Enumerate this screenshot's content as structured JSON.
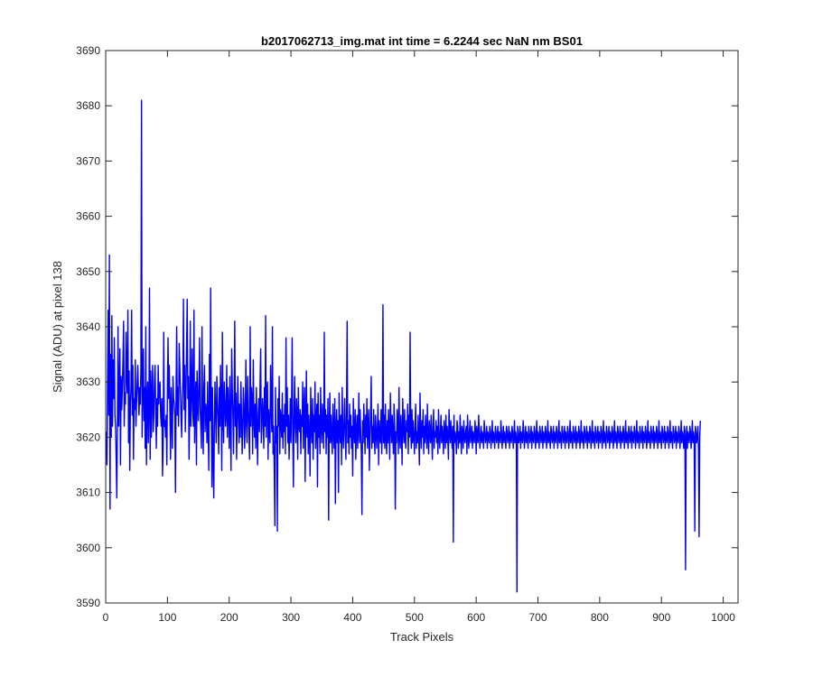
{
  "chart_data": {
    "type": "line",
    "title": "b2017062713_img.mat int time = 6.2244 sec  NaN nm BS01",
    "xlabel": "Track Pixels",
    "ylabel": "Signal (ADU) at pixel 138",
    "xlim": [
      0,
      1024
    ],
    "ylim": [
      3590,
      3690
    ],
    "xticks": [
      0,
      100,
      200,
      300,
      400,
      500,
      600,
      700,
      800,
      900,
      1000
    ],
    "yticks": [
      3590,
      3600,
      3610,
      3620,
      3630,
      3640,
      3650,
      3660,
      3670,
      3680,
      3690
    ],
    "grid": false,
    "series_color": "#0000ff",
    "series": [
      {
        "x_start": 1,
        "x_step": 1,
        "values": [
          3621,
          3615,
          3630,
          3643,
          3624,
          3653,
          3607,
          3635,
          3620,
          3642,
          3622,
          3634,
          3627,
          3638,
          3624,
          3622,
          3616,
          3609,
          3623,
          3640,
          3622,
          3629,
          3636,
          3615,
          3631,
          3625,
          3629,
          3634,
          3641,
          3622,
          3628,
          3626,
          3639,
          3631,
          3628,
          3643,
          3619,
          3632,
          3614,
          3626,
          3629,
          3643,
          3624,
          3633,
          3616,
          3627,
          3625,
          3634,
          3622,
          3626,
          3630,
          3633,
          3628,
          3624,
          3629,
          3626,
          3632,
          3681,
          3620,
          3629,
          3636,
          3623,
          3629,
          3618,
          3640,
          3615,
          3626,
          3630,
          3619,
          3625,
          3647,
          3616,
          3632,
          3620,
          3628,
          3633,
          3621,
          3624,
          3630,
          3633,
          3625,
          3618,
          3627,
          3622,
          3633,
          3626,
          3629,
          3630,
          3624,
          3622,
          3627,
          3613,
          3618,
          3639,
          3622,
          3623,
          3620,
          3624,
          3615,
          3629,
          3638,
          3627,
          3633,
          3625,
          3616,
          3629,
          3624,
          3618,
          3631,
          3627,
          3626,
          3624,
          3610,
          3628,
          3640,
          3624,
          3629,
          3622,
          3637,
          3633,
          3628,
          3624,
          3620,
          3627,
          3630,
          3645,
          3625,
          3633,
          3621,
          3628,
          3636,
          3645,
          3627,
          3631,
          3616,
          3624,
          3641,
          3622,
          3628,
          3636,
          3625,
          3622,
          3643,
          3619,
          3626,
          3630,
          3615,
          3632,
          3627,
          3623,
          3629,
          3638,
          3625,
          3622,
          3618,
          3640,
          3624,
          3617,
          3629,
          3633,
          3621,
          3626,
          3625,
          3619,
          3630,
          3621,
          3614,
          3635,
          3623,
          3647,
          3625,
          3611,
          3629,
          3616,
          3609,
          3622,
          3630,
          3624,
          3619,
          3631,
          3627,
          3623,
          3617,
          3629,
          3622,
          3633,
          3626,
          3614,
          3639,
          3624,
          3619,
          3630,
          3627,
          3622,
          3624,
          3633,
          3620,
          3629,
          3625,
          3618,
          3631,
          3623,
          3614,
          3636,
          3629,
          3624,
          3617,
          3627,
          3641,
          3622,
          3628,
          3616,
          3623,
          3631,
          3625,
          3619,
          3626,
          3620,
          3630,
          3624,
          3617,
          3621,
          3629,
          3626,
          3618,
          3623,
          3634,
          3622,
          3619,
          3631,
          3625,
          3621,
          3616,
          3640,
          3622,
          3629,
          3627,
          3617,
          3634,
          3624,
          3620,
          3626,
          3618,
          3629,
          3622,
          3615,
          3624,
          3627,
          3621,
          3630,
          3636,
          3619,
          3622,
          3627,
          3624,
          3618,
          3629,
          3622,
          3642,
          3620,
          3628,
          3630,
          3616,
          3625,
          3621,
          3619,
          3633,
          3626,
          3621,
          3640,
          3617,
          3622,
          3614,
          3604,
          3629,
          3619,
          3622,
          3603,
          3627,
          3622,
          3631,
          3617,
          3625,
          3623,
          3620,
          3628,
          3618,
          3624,
          3621,
          3626,
          3617,
          3638,
          3622,
          3629,
          3619,
          3624,
          3616,
          3621,
          3627,
          3619,
          3626,
          3638,
          3620,
          3611,
          3624,
          3631,
          3622,
          3619,
          3627,
          3624,
          3616,
          3629,
          3622,
          3621,
          3625,
          3617,
          3624,
          3622,
          3630,
          3618,
          3625,
          3629,
          3612,
          3623,
          3632,
          3620,
          3626,
          3617,
          3624,
          3621,
          3613,
          3629,
          3622,
          3619,
          3627,
          3616,
          3624,
          3621,
          3630,
          3618,
          3623,
          3626,
          3611,
          3628,
          3620,
          3624,
          3617,
          3629,
          3622,
          3619,
          3626,
          3622,
          3618,
          3639,
          3621,
          3625,
          3617,
          3624,
          3620,
          3627,
          3605,
          3622,
          3628,
          3619,
          3624,
          3620,
          3617,
          3626,
          3621,
          3618,
          3627,
          3608,
          3622,
          3625,
          3619,
          3623,
          3610,
          3628,
          3622,
          3619,
          3624,
          3615,
          3629,
          3621,
          3618,
          3623,
          3627,
          3620,
          3616,
          3625,
          3641,
          3619,
          3623,
          3617,
          3626,
          3620,
          3624,
          3618,
          3622,
          3613,
          3627,
          3621,
          3619,
          3625,
          3616,
          3621,
          3624,
          3618,
          3622,
          3628,
          3619,
          3625,
          3621,
          3617,
          3606,
          3623,
          3619,
          3626,
          3622,
          3617,
          3624,
          3620,
          3627,
          3618,
          3622,
          3625,
          3614,
          3620,
          3624,
          3631,
          3618,
          3622,
          3619,
          3625,
          3620,
          3617,
          3624,
          3621,
          3618,
          3622,
          3626,
          3615,
          3623,
          3620,
          3619,
          3625,
          3617,
          3621,
          3644,
          3619,
          3624,
          3618,
          3626,
          3620,
          3617,
          3623,
          3619,
          3625,
          3621,
          3616,
          3628,
          3622,
          3619,
          3624,
          3620,
          3617,
          3626,
          3622,
          3607,
          3621,
          3619,
          3625,
          3623,
          3617,
          3629,
          3620,
          3618,
          3624,
          3621,
          3615,
          3627,
          3622,
          3619,
          3625,
          3620,
          3618,
          3623,
          3621,
          3626,
          3617,
          3624,
          3620,
          3639,
          3621,
          3618,
          3625,
          3619,
          3623,
          3620,
          3617,
          3622,
          3626,
          3618,
          3621,
          3619,
          3624,
          3620,
          3615,
          3628,
          3621,
          3618,
          3623,
          3620,
          3625,
          3617,
          3622,
          3619,
          3624,
          3621,
          3618,
          3626,
          3620,
          3617,
          3623,
          3621,
          3619,
          3624,
          3620,
          3616,
          3622,
          3625,
          3618,
          3621,
          3620,
          3623,
          3619,
          3622,
          3617,
          3625,
          3620,
          3618,
          3621,
          3624,
          3619,
          3622,
          3620,
          3617,
          3623,
          3621,
          3618,
          3624,
          3619,
          3622,
          3620,
          3616,
          3625,
          3621,
          3619,
          3623,
          3620,
          3618,
          3622,
          3601,
          3624,
          3619,
          3621,
          3620,
          3617,
          3623,
          3622,
          3618,
          3621,
          3619,
          3624,
          3620,
          3617,
          3622,
          3621,
          3618,
          3623,
          3620,
          3619,
          3621,
          3622,
          3617,
          3624,
          3620,
          3618,
          3621,
          3623,
          3619,
          3620,
          3622,
          3618,
          3621,
          3620,
          3619,
          3623,
          3621,
          3617,
          3622,
          3620,
          3619,
          3624,
          3621,
          3618,
          3620,
          3622,
          3619,
          3621,
          3620,
          3618,
          3623,
          3621,
          3619,
          3620,
          3622,
          3618,
          3621,
          3620,
          3619,
          3622,
          3621,
          3618,
          3620,
          3623,
          3619,
          3621,
          3620,
          3618,
          3622,
          3621,
          3619,
          3620,
          3622,
          3618,
          3621,
          3620,
          3619,
          3623,
          3621,
          3618,
          3620,
          3622,
          3619,
          3621,
          3620,
          3618,
          3622,
          3621,
          3619,
          3620,
          3622,
          3618,
          3621,
          3620,
          3619,
          3622,
          3621,
          3618,
          3620,
          3623,
          3619,
          3621,
          3620,
          3592,
          3622,
          3621,
          3619,
          3620,
          3622,
          3618,
          3621,
          3620,
          3619,
          3623,
          3621,
          3618,
          3620,
          3622,
          3619,
          3621,
          3620,
          3618,
          3622,
          3621,
          3619,
          3620,
          3622,
          3618,
          3621,
          3620,
          3619,
          3622,
          3621,
          3618,
          3620,
          3623,
          3619,
          3621,
          3620,
          3618,
          3622,
          3621,
          3619,
          3620,
          3622,
          3618,
          3621,
          3620,
          3619,
          3622,
          3621,
          3618,
          3620,
          3623,
          3619,
          3621,
          3620,
          3618,
          3622,
          3621,
          3619,
          3620,
          3622,
          3618,
          3621,
          3620,
          3619,
          3622,
          3621,
          3618,
          3620,
          3623,
          3619,
          3621,
          3620,
          3618,
          3622,
          3621,
          3619,
          3620,
          3622,
          3618,
          3621,
          3620,
          3619,
          3622,
          3621,
          3618,
          3620,
          3623,
          3619,
          3621,
          3620,
          3618,
          3622,
          3621,
          3619,
          3620,
          3622,
          3618,
          3621,
          3620,
          3619,
          3622,
          3621,
          3618,
          3620,
          3623,
          3619,
          3621,
          3620,
          3618,
          3622,
          3621,
          3619,
          3620,
          3622,
          3618,
          3621,
          3620,
          3619,
          3622,
          3621,
          3618,
          3620,
          3623,
          3619,
          3621,
          3620,
          3618,
          3622,
          3621,
          3619,
          3620,
          3622,
          3618,
          3621,
          3620,
          3619,
          3622,
          3621,
          3618,
          3620,
          3623,
          3619,
          3621,
          3620,
          3618,
          3622,
          3621,
          3619,
          3620,
          3622,
          3618,
          3621,
          3620,
          3619,
          3622,
          3621,
          3618,
          3620,
          3623,
          3619,
          3621,
          3620,
          3618,
          3622,
          3621,
          3619,
          3620,
          3622,
          3618,
          3621,
          3620,
          3619,
          3622,
          3621,
          3618,
          3620,
          3623,
          3619,
          3621,
          3620,
          3618,
          3622,
          3621,
          3619,
          3620,
          3622,
          3618,
          3621,
          3620,
          3619,
          3622,
          3621,
          3618,
          3620,
          3623,
          3619,
          3621,
          3620,
          3618,
          3622,
          3621,
          3619,
          3620,
          3622,
          3618,
          3621,
          3620,
          3619,
          3622,
          3621,
          3618,
          3620,
          3623,
          3619,
          3621,
          3620,
          3618,
          3622,
          3621,
          3619,
          3620,
          3622,
          3618,
          3621,
          3620,
          3619,
          3622,
          3621,
          3618,
          3620,
          3623,
          3619,
          3621,
          3620,
          3618,
          3622,
          3621,
          3619,
          3620,
          3622,
          3618,
          3621,
          3620,
          3619,
          3622,
          3621,
          3618,
          3620,
          3623,
          3619,
          3621,
          3620,
          3618,
          3622,
          3621,
          3619,
          3620,
          3622,
          3618,
          3621,
          3620,
          3619,
          3622,
          3621,
          3618,
          3620,
          3623,
          3619,
          3621,
          3620,
          3618,
          3622,
          3621,
          3596,
          3620,
          3622,
          3618,
          3621,
          3620,
          3619,
          3622,
          3621,
          3618,
          3620,
          3623,
          3619,
          3621,
          3620,
          3603,
          3622,
          3621,
          3619,
          3620,
          3622,
          3618,
          3602,
          3620,
          3623
        ]
      }
    ]
  }
}
